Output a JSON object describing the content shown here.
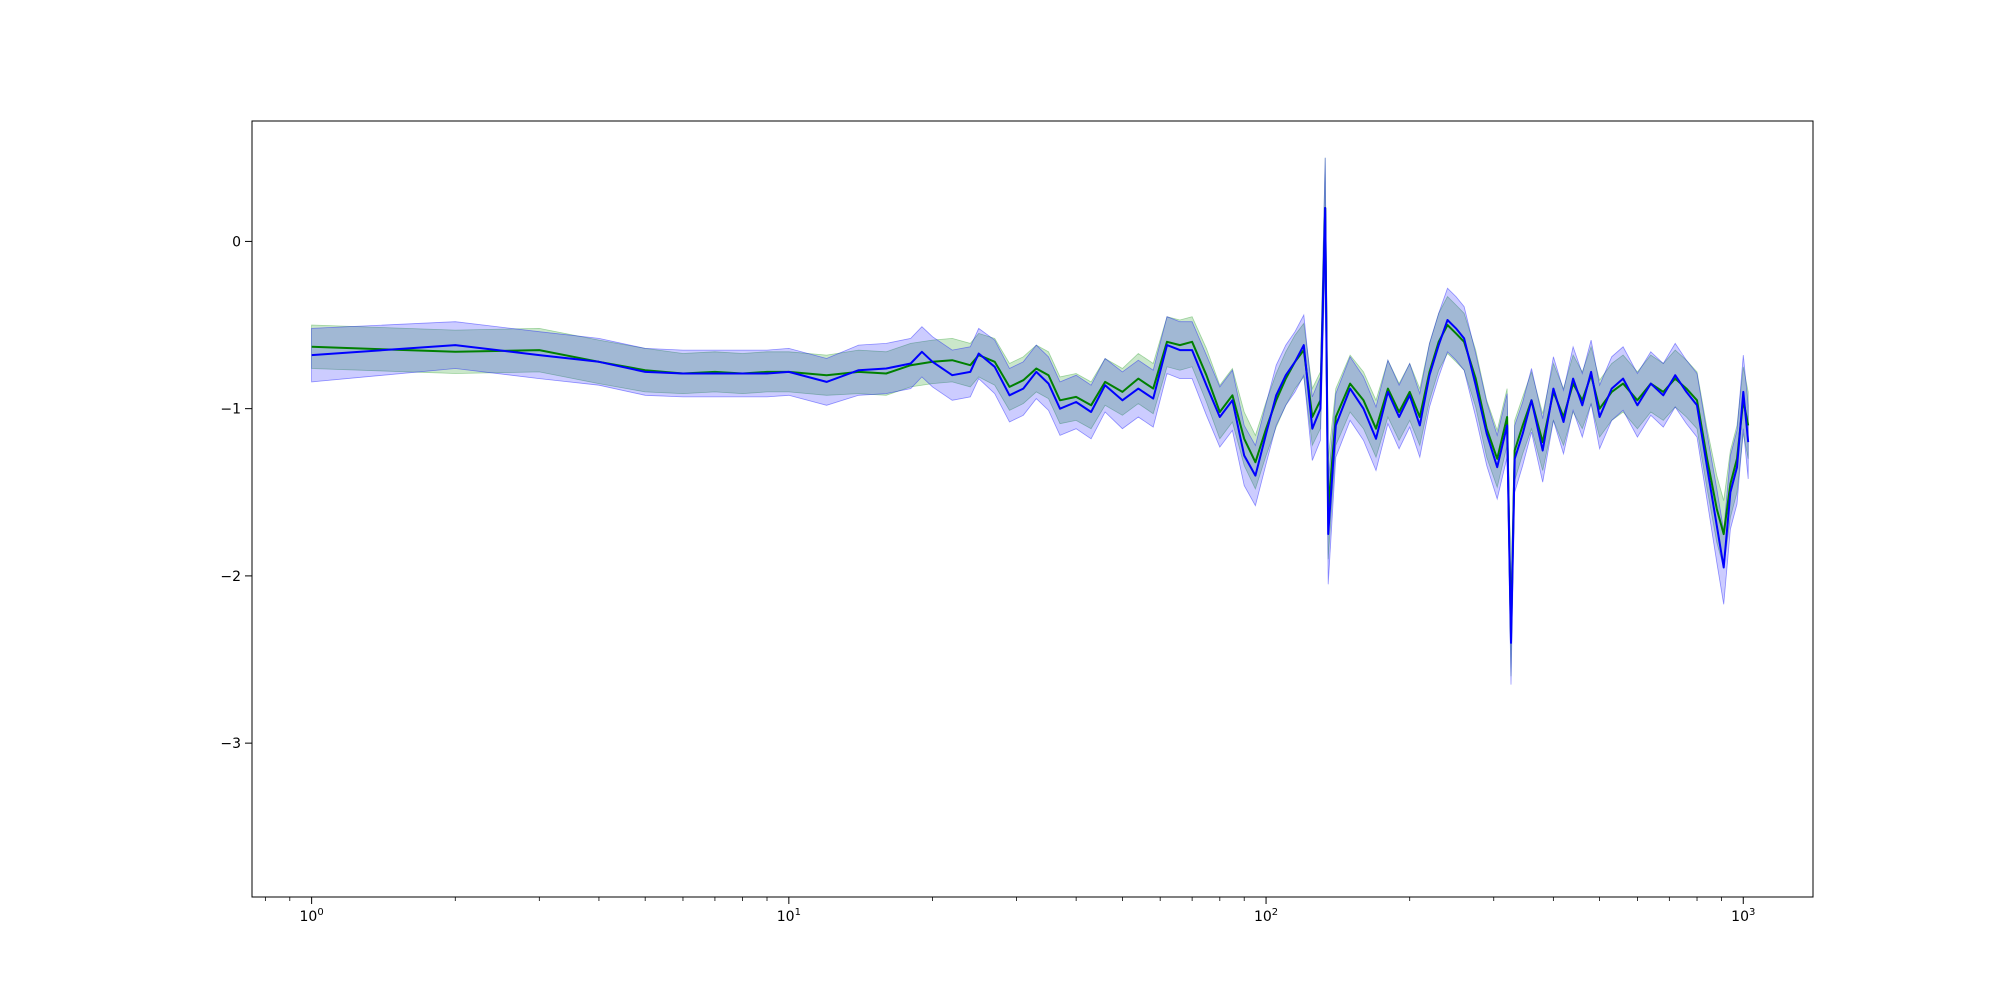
{
  "chart_data": {
    "type": "line",
    "title": "",
    "xlabel": "",
    "ylabel": "",
    "xscale": "log",
    "xlim": [
      0.75,
      1400
    ],
    "ylim": [
      -3.92,
      0.72
    ],
    "grid": false,
    "legend": "none",
    "xticks": [
      {
        "base": "10",
        "exp": "0",
        "value": 1
      },
      {
        "base": "10",
        "exp": "1",
        "value": 10
      },
      {
        "base": "10",
        "exp": "2",
        "value": 100
      },
      {
        "base": "10",
        "exp": "3",
        "value": 1000
      }
    ],
    "yticks": [
      {
        "label": "0",
        "value": 0
      },
      {
        "label": "−1",
        "value": -1
      },
      {
        "label": "−2",
        "value": -2
      },
      {
        "label": "−3",
        "value": -3
      }
    ],
    "series": [
      {
        "color": "#008000",
        "band_color": "#2ca02c",
        "band_opacity": 0.25,
        "points": [
          [
            1,
            -0.63,
            0.13
          ],
          [
            2,
            -0.66,
            0.13
          ],
          [
            3,
            -0.65,
            0.13
          ],
          [
            4,
            -0.72,
            0.13
          ],
          [
            5,
            -0.77,
            0.13
          ],
          [
            6,
            -0.79,
            0.12
          ],
          [
            7,
            -0.78,
            0.12
          ],
          [
            8,
            -0.79,
            0.12
          ],
          [
            9,
            -0.78,
            0.12
          ],
          [
            10,
            -0.78,
            0.12
          ],
          [
            12,
            -0.8,
            0.12
          ],
          [
            14,
            -0.78,
            0.13
          ],
          [
            16,
            -0.79,
            0.13
          ],
          [
            18,
            -0.74,
            0.13
          ],
          [
            20,
            -0.72,
            0.13
          ],
          [
            22,
            -0.71,
            0.13
          ],
          [
            24,
            -0.74,
            0.13
          ],
          [
            25,
            -0.68,
            0.13
          ],
          [
            27,
            -0.72,
            0.14
          ],
          [
            29,
            -0.87,
            0.14
          ],
          [
            31,
            -0.83,
            0.14
          ],
          [
            33,
            -0.76,
            0.14
          ],
          [
            35,
            -0.8,
            0.14
          ],
          [
            37,
            -0.95,
            0.14
          ],
          [
            40,
            -0.93,
            0.14
          ],
          [
            43,
            -0.98,
            0.14
          ],
          [
            46,
            -0.84,
            0.14
          ],
          [
            50,
            -0.9,
            0.14
          ],
          [
            54,
            -0.82,
            0.15
          ],
          [
            58,
            -0.88,
            0.15
          ],
          [
            62,
            -0.6,
            0.15
          ],
          [
            66,
            -0.62,
            0.15
          ],
          [
            70,
            -0.6,
            0.15
          ],
          [
            75,
            -0.8,
            0.16
          ],
          [
            80,
            -1.02,
            0.16
          ],
          [
            85,
            -0.92,
            0.16
          ],
          [
            90,
            -1.18,
            0.16
          ],
          [
            95,
            -1.32,
            0.16
          ],
          [
            100,
            -1.12,
            0.16
          ],
          [
            105,
            -0.95,
            0.16
          ],
          [
            110,
            -0.82,
            0.16
          ],
          [
            115,
            -0.72,
            0.16
          ],
          [
            120,
            -0.65,
            0.16
          ],
          [
            125,
            -1.05,
            0.17
          ],
          [
            130,
            -0.95,
            0.17
          ],
          [
            133,
            0.2,
            0.3
          ],
          [
            135,
            -1.6,
            0.3
          ],
          [
            140,
            -1.05,
            0.17
          ],
          [
            150,
            -0.85,
            0.17
          ],
          [
            160,
            -0.95,
            0.17
          ],
          [
            170,
            -1.12,
            0.17
          ],
          [
            180,
            -0.88,
            0.17
          ],
          [
            190,
            -1.02,
            0.17
          ],
          [
            200,
            -0.9,
            0.17
          ],
          [
            210,
            -1.05,
            0.17
          ],
          [
            220,
            -0.78,
            0.17
          ],
          [
            230,
            -0.6,
            0.17
          ],
          [
            240,
            -0.5,
            0.17
          ],
          [
            250,
            -0.55,
            0.17
          ],
          [
            260,
            -0.6,
            0.17
          ],
          [
            275,
            -0.82,
            0.17
          ],
          [
            290,
            -1.12,
            0.17
          ],
          [
            305,
            -1.3,
            0.17
          ],
          [
            320,
            -1.05,
            0.17
          ],
          [
            326,
            -2.35,
            0.25
          ],
          [
            332,
            -1.25,
            0.18
          ],
          [
            345,
            -1.1,
            0.17
          ],
          [
            360,
            -0.95,
            0.17
          ],
          [
            380,
            -1.2,
            0.17
          ],
          [
            400,
            -0.9,
            0.17
          ],
          [
            420,
            -1.05,
            0.17
          ],
          [
            440,
            -0.85,
            0.17
          ],
          [
            460,
            -0.95,
            0.17
          ],
          [
            480,
            -0.8,
            0.17
          ],
          [
            500,
            -1.0,
            0.17
          ],
          [
            530,
            -0.9,
            0.17
          ],
          [
            560,
            -0.85,
            0.17
          ],
          [
            600,
            -0.95,
            0.17
          ],
          [
            640,
            -0.85,
            0.17
          ],
          [
            680,
            -0.9,
            0.17
          ],
          [
            720,
            -0.82,
            0.17
          ],
          [
            760,
            -0.88,
            0.17
          ],
          [
            800,
            -0.95,
            0.17
          ],
          [
            840,
            -1.3,
            0.18
          ],
          [
            880,
            -1.6,
            0.2
          ],
          [
            910,
            -1.75,
            0.2
          ],
          [
            940,
            -1.45,
            0.2
          ],
          [
            970,
            -1.3,
            0.2
          ],
          [
            1000,
            -0.95,
            0.2
          ],
          [
            1024,
            -1.1,
            0.2
          ]
        ]
      },
      {
        "color": "#0000ff",
        "band_color": "#0000ff",
        "band_opacity": 0.2,
        "points": [
          [
            1,
            -0.68,
            0.16
          ],
          [
            2,
            -0.62,
            0.14
          ],
          [
            3,
            -0.68,
            0.14
          ],
          [
            4,
            -0.72,
            0.14
          ],
          [
            5,
            -0.78,
            0.14
          ],
          [
            6,
            -0.79,
            0.14
          ],
          [
            7,
            -0.79,
            0.14
          ],
          [
            8,
            -0.79,
            0.14
          ],
          [
            9,
            -0.79,
            0.14
          ],
          [
            10,
            -0.78,
            0.14
          ],
          [
            12,
            -0.84,
            0.14
          ],
          [
            14,
            -0.77,
            0.15
          ],
          [
            16,
            -0.76,
            0.15
          ],
          [
            18,
            -0.73,
            0.15
          ],
          [
            19,
            -0.66,
            0.15
          ],
          [
            20,
            -0.72,
            0.15
          ],
          [
            22,
            -0.8,
            0.15
          ],
          [
            24,
            -0.78,
            0.15
          ],
          [
            25,
            -0.67,
            0.15
          ],
          [
            27,
            -0.75,
            0.16
          ],
          [
            29,
            -0.92,
            0.16
          ],
          [
            31,
            -0.88,
            0.16
          ],
          [
            33,
            -0.78,
            0.16
          ],
          [
            35,
            -0.85,
            0.16
          ],
          [
            37,
            -1.0,
            0.16
          ],
          [
            40,
            -0.96,
            0.16
          ],
          [
            43,
            -1.02,
            0.16
          ],
          [
            46,
            -0.86,
            0.16
          ],
          [
            50,
            -0.95,
            0.17
          ],
          [
            54,
            -0.88,
            0.17
          ],
          [
            58,
            -0.94,
            0.17
          ],
          [
            62,
            -0.62,
            0.17
          ],
          [
            66,
            -0.65,
            0.17
          ],
          [
            70,
            -0.65,
            0.17
          ],
          [
            75,
            -0.86,
            0.18
          ],
          [
            80,
            -1.05,
            0.18
          ],
          [
            85,
            -0.95,
            0.18
          ],
          [
            90,
            -1.28,
            0.18
          ],
          [
            95,
            -1.4,
            0.18
          ],
          [
            100,
            -1.15,
            0.18
          ],
          [
            105,
            -0.92,
            0.18
          ],
          [
            110,
            -0.8,
            0.18
          ],
          [
            115,
            -0.72,
            0.18
          ],
          [
            120,
            -0.62,
            0.18
          ],
          [
            125,
            -1.12,
            0.19
          ],
          [
            130,
            -1.0,
            0.19
          ],
          [
            133,
            0.2,
            0.3
          ],
          [
            135,
            -1.75,
            0.3
          ],
          [
            140,
            -1.1,
            0.19
          ],
          [
            150,
            -0.88,
            0.19
          ],
          [
            160,
            -1.0,
            0.19
          ],
          [
            170,
            -1.18,
            0.19
          ],
          [
            180,
            -0.9,
            0.19
          ],
          [
            190,
            -1.05,
            0.19
          ],
          [
            200,
            -0.92,
            0.19
          ],
          [
            210,
            -1.1,
            0.19
          ],
          [
            220,
            -0.8,
            0.19
          ],
          [
            230,
            -0.62,
            0.19
          ],
          [
            240,
            -0.47,
            0.19
          ],
          [
            250,
            -0.52,
            0.19
          ],
          [
            260,
            -0.58,
            0.19
          ],
          [
            275,
            -0.86,
            0.19
          ],
          [
            290,
            -1.15,
            0.19
          ],
          [
            305,
            -1.35,
            0.19
          ],
          [
            320,
            -1.1,
            0.19
          ],
          [
            326,
            -2.4,
            0.25
          ],
          [
            332,
            -1.3,
            0.2
          ],
          [
            345,
            -1.15,
            0.19
          ],
          [
            360,
            -0.95,
            0.19
          ],
          [
            380,
            -1.25,
            0.19
          ],
          [
            400,
            -0.88,
            0.19
          ],
          [
            420,
            -1.08,
            0.19
          ],
          [
            440,
            -0.82,
            0.19
          ],
          [
            460,
            -0.98,
            0.19
          ],
          [
            480,
            -0.78,
            0.19
          ],
          [
            500,
            -1.05,
            0.19
          ],
          [
            530,
            -0.88,
            0.19
          ],
          [
            560,
            -0.82,
            0.19
          ],
          [
            600,
            -0.98,
            0.19
          ],
          [
            640,
            -0.85,
            0.19
          ],
          [
            680,
            -0.92,
            0.19
          ],
          [
            720,
            -0.8,
            0.19
          ],
          [
            760,
            -0.9,
            0.19
          ],
          [
            800,
            -0.98,
            0.19
          ],
          [
            840,
            -1.35,
            0.2
          ],
          [
            880,
            -1.7,
            0.22
          ],
          [
            910,
            -1.95,
            0.22
          ],
          [
            940,
            -1.5,
            0.22
          ],
          [
            970,
            -1.35,
            0.22
          ],
          [
            1000,
            -0.9,
            0.22
          ],
          [
            1024,
            -1.2,
            0.22
          ]
        ]
      }
    ]
  }
}
